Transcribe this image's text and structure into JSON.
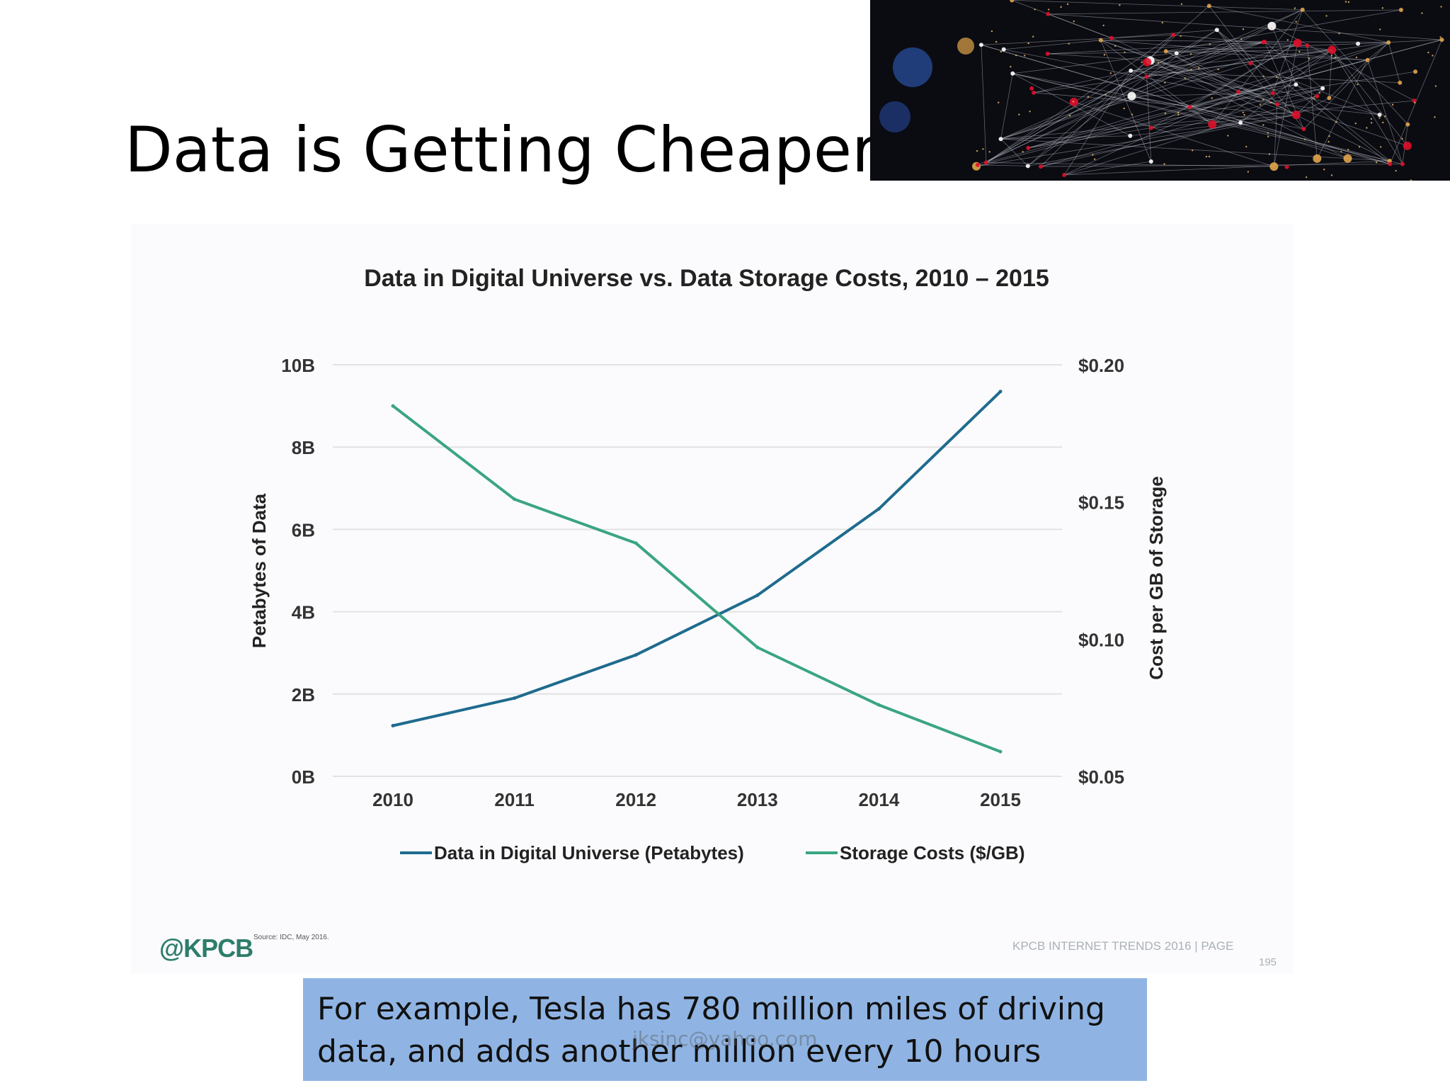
{
  "slide": {
    "title": "Data is Getting Cheaper",
    "callout": "For example, Tesla has 780 million miles of driving data, and adds another million every 10 hours",
    "watermark": "jksinc@yahoo.com"
  },
  "footer": {
    "brand": "@KPCB",
    "source": "Source: IDC, May 2016.",
    "report": "KPCB INTERNET TRENDS 2016  |  PAGE",
    "page": "195"
  },
  "colors": {
    "data_series": "#1f6b8e",
    "storage_series": "#3aa581",
    "grid": "#e2e2e2"
  },
  "chart_data": {
    "type": "line",
    "title": "Data in Digital Universe vs. Data Storage Costs, 2010 – 2015",
    "categories": [
      "2010",
      "2011",
      "2012",
      "2013",
      "2014",
      "2015"
    ],
    "ylabel": "Petabytes of Data",
    "y2label": "Cost per GB of Storage",
    "ylim": [
      0,
      10
    ],
    "yticks": [
      0,
      2,
      4,
      6,
      8,
      10
    ],
    "yticklabels": [
      "0B",
      "2B",
      "4B",
      "6B",
      "8B",
      "10B"
    ],
    "y2lim": [
      0.05,
      0.2
    ],
    "y2ticks": [
      0.05,
      0.1,
      0.15,
      0.2
    ],
    "y2ticklabels": [
      "$0.05",
      "$0.10",
      "$0.15",
      "$0.20"
    ],
    "grid": true,
    "legend_position": "bottom",
    "series": [
      {
        "name": "Data in Digital Universe (Petabytes)",
        "axis": "left",
        "values": [
          1.23,
          1.9,
          2.95,
          4.4,
          6.5,
          9.35
        ]
      },
      {
        "name": "Storage Costs ($/GB)",
        "axis": "right",
        "values": [
          0.185,
          0.151,
          0.135,
          0.097,
          0.076,
          0.059
        ]
      }
    ]
  }
}
